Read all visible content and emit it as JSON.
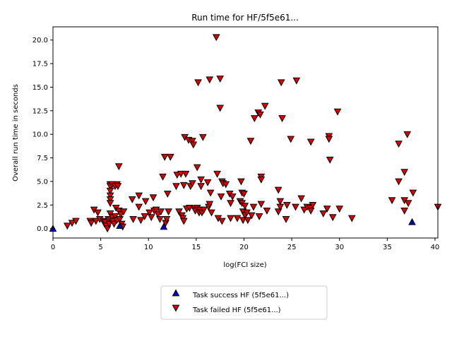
{
  "chart_data": {
    "type": "scatter",
    "title": "Run time for HF/5f5e61...",
    "xlabel": "log(FCI size)",
    "ylabel": "Overall run time in seconds",
    "xlim": [
      0,
      40.3
    ],
    "ylim": [
      -1.0,
      21.4
    ],
    "xticks": [
      0,
      5,
      10,
      15,
      20,
      25,
      30,
      35,
      40
    ],
    "yticks": [
      0.0,
      2.5,
      5.0,
      7.5,
      10.0,
      12.5,
      15.0,
      17.5,
      20.0
    ],
    "xtick_labels": [
      "0",
      "5",
      "10",
      "15",
      "20",
      "25",
      "30",
      "35",
      "40"
    ],
    "ytick_labels": [
      "0.0",
      "2.5",
      "5.0",
      "7.5",
      "10.0",
      "12.5",
      "15.0",
      "17.5",
      "20.0"
    ],
    "grid": false,
    "legend_position": "bottom-center, below plot",
    "series": [
      {
        "name": "Task success HF (5f5e61...)",
        "marker": "triangle-up",
        "color": "#0000cc",
        "points": [
          [
            0.0,
            0.0
          ],
          [
            7.0,
            0.3
          ],
          [
            11.6,
            0.2
          ],
          [
            37.6,
            0.7
          ]
        ]
      },
      {
        "name": "Task failed HF (5f5e61...)",
        "marker": "triangle-down",
        "color": "#dd0000",
        "points": [
          [
            1.5,
            0.3
          ],
          [
            2.0,
            0.6
          ],
          [
            2.4,
            0.8
          ],
          [
            3.9,
            0.8
          ],
          [
            4.0,
            0.6
          ],
          [
            4.3,
            2.0
          ],
          [
            4.5,
            0.8
          ],
          [
            4.7,
            1.7
          ],
          [
            4.9,
            1.0
          ],
          [
            5.3,
            0.8
          ],
          [
            5.4,
            0.5
          ],
          [
            5.5,
            0.7
          ],
          [
            5.6,
            0.3
          ],
          [
            5.7,
            0.0
          ],
          [
            5.8,
            1.0
          ],
          [
            5.9,
            0.5
          ],
          [
            6.0,
            4.7
          ],
          [
            6.0,
            4.5
          ],
          [
            6.0,
            4.0
          ],
          [
            6.0,
            3.5
          ],
          [
            6.0,
            3.1
          ],
          [
            6.0,
            2.7
          ],
          [
            6.0,
            1.6
          ],
          [
            6.0,
            1.0
          ],
          [
            6.2,
            4.7
          ],
          [
            6.2,
            1.2
          ],
          [
            6.3,
            0.8
          ],
          [
            6.4,
            0.5
          ],
          [
            6.5,
            4.5
          ],
          [
            6.5,
            1.3
          ],
          [
            6.6,
            2.2
          ],
          [
            6.7,
            4.7
          ],
          [
            6.7,
            0.9
          ],
          [
            6.8,
            4.5
          ],
          [
            6.9,
            6.6
          ],
          [
            6.9,
            1.9
          ],
          [
            7.0,
            1.0
          ],
          [
            7.1,
            1.5
          ],
          [
            7.2,
            0.5
          ],
          [
            7.3,
            0.2
          ],
          [
            7.4,
            1.8
          ],
          [
            8.3,
            3.1
          ],
          [
            8.4,
            1.0
          ],
          [
            9.0,
            3.5
          ],
          [
            9.0,
            2.3
          ],
          [
            9.2,
            0.9
          ],
          [
            9.6,
            1.3
          ],
          [
            9.7,
            2.9
          ],
          [
            10.1,
            1.7
          ],
          [
            10.3,
            1.2
          ],
          [
            10.5,
            3.3
          ],
          [
            10.6,
            1.9
          ],
          [
            10.8,
            2.0
          ],
          [
            11.0,
            1.5
          ],
          [
            11.2,
            1.0
          ],
          [
            11.3,
            1.8
          ],
          [
            11.5,
            5.5
          ],
          [
            11.7,
            7.6
          ],
          [
            11.8,
            0.6
          ],
          [
            11.9,
            1.0
          ],
          [
            12.0,
            3.7
          ],
          [
            12.1,
            1.8
          ],
          [
            12.3,
            7.6
          ],
          [
            12.9,
            4.5
          ],
          [
            13.0,
            5.7
          ],
          [
            13.2,
            1.8
          ],
          [
            13.4,
            5.8
          ],
          [
            13.5,
            1.4
          ],
          [
            13.6,
            1.1
          ],
          [
            13.7,
            4.6
          ],
          [
            13.7,
            0.8
          ],
          [
            13.8,
            9.7
          ],
          [
            13.9,
            5.8
          ],
          [
            14.0,
            2.1
          ],
          [
            14.2,
            9.4
          ],
          [
            14.3,
            2.2
          ],
          [
            14.4,
            4.5
          ],
          [
            14.6,
            9.3
          ],
          [
            14.6,
            4.8
          ],
          [
            14.7,
            8.9
          ],
          [
            14.8,
            2.1
          ],
          [
            14.9,
            1.9
          ],
          [
            15.1,
            6.5
          ],
          [
            15.1,
            2.2
          ],
          [
            15.2,
            15.5
          ],
          [
            15.3,
            1.7
          ],
          [
            15.4,
            2.0
          ],
          [
            15.5,
            5.2
          ],
          [
            15.5,
            4.5
          ],
          [
            15.6,
            1.7
          ],
          [
            15.7,
            9.7
          ],
          [
            15.8,
            2.0
          ],
          [
            16.2,
            4.9
          ],
          [
            16.3,
            2.3
          ],
          [
            16.4,
            2.6
          ],
          [
            16.4,
            15.8
          ],
          [
            16.5,
            3.8
          ],
          [
            16.6,
            1.7
          ],
          [
            17.1,
            20.3
          ],
          [
            17.2,
            5.8
          ],
          [
            17.3,
            1.1
          ],
          [
            17.5,
            15.9
          ],
          [
            17.5,
            12.8
          ],
          [
            17.6,
            3.4
          ],
          [
            17.7,
            5.0
          ],
          [
            17.7,
            0.8
          ],
          [
            17.8,
            4.8
          ],
          [
            18.1,
            4.7
          ],
          [
            18.5,
            3.7
          ],
          [
            18.6,
            2.7
          ],
          [
            18.6,
            1.1
          ],
          [
            18.8,
            3.4
          ],
          [
            19.3,
            1.1
          ],
          [
            19.6,
            2.9
          ],
          [
            19.7,
            5.0
          ],
          [
            19.8,
            3.8
          ],
          [
            19.8,
            2.7
          ],
          [
            19.9,
            1.8
          ],
          [
            19.9,
            0.9
          ],
          [
            20.0,
            3.7
          ],
          [
            20.1,
            2.4
          ],
          [
            20.1,
            1.4
          ],
          [
            20.3,
            1.7
          ],
          [
            20.4,
            0.9
          ],
          [
            20.7,
            9.3
          ],
          [
            20.8,
            1.4
          ],
          [
            21.0,
            2.3
          ],
          [
            21.1,
            11.7
          ],
          [
            21.5,
            12.3
          ],
          [
            21.6,
            1.3
          ],
          [
            21.7,
            12.1
          ],
          [
            21.8,
            5.5
          ],
          [
            21.8,
            5.2
          ],
          [
            21.8,
            2.6
          ],
          [
            22.2,
            13.0
          ],
          [
            22.4,
            1.9
          ],
          [
            23.6,
            4.1
          ],
          [
            23.6,
            1.8
          ],
          [
            23.8,
            2.3
          ],
          [
            23.8,
            2.9
          ],
          [
            23.9,
            15.5
          ],
          [
            24.0,
            11.7
          ],
          [
            24.4,
            1.0
          ],
          [
            24.5,
            2.5
          ],
          [
            24.9,
            9.5
          ],
          [
            25.4,
            2.3
          ],
          [
            25.5,
            15.7
          ],
          [
            26.0,
            3.2
          ],
          [
            26.3,
            2.0
          ],
          [
            26.6,
            2.3
          ],
          [
            26.9,
            2.2
          ],
          [
            27.0,
            9.2
          ],
          [
            27.0,
            1.9
          ],
          [
            27.2,
            2.5
          ],
          [
            28.3,
            1.6
          ],
          [
            28.7,
            2.1
          ],
          [
            28.9,
            9.8
          ],
          [
            28.9,
            9.5
          ],
          [
            29.0,
            7.3
          ],
          [
            29.3,
            1.2
          ],
          [
            29.8,
            12.4
          ],
          [
            30.0,
            2.1
          ],
          [
            31.3,
            1.1
          ],
          [
            35.5,
            3.0
          ],
          [
            36.2,
            9.0
          ],
          [
            36.2,
            5.0
          ],
          [
            36.8,
            6.0
          ],
          [
            36.8,
            3.0
          ],
          [
            36.8,
            1.9
          ],
          [
            37.1,
            10.0
          ],
          [
            37.2,
            2.7
          ],
          [
            37.7,
            3.8
          ],
          [
            40.3,
            2.3
          ]
        ]
      }
    ]
  }
}
